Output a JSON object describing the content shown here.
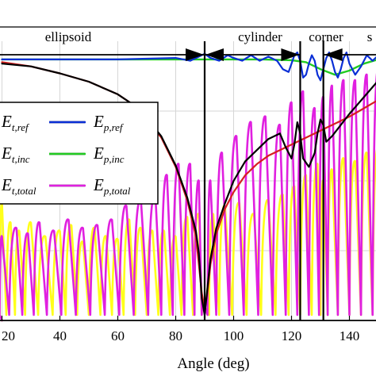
{
  "chart_data": {
    "type": "line",
    "xlabel": "Angle (deg)",
    "x_ticks": [
      20,
      40,
      60,
      80,
      100,
      120,
      140
    ],
    "xlim": [
      20,
      150
    ],
    "ylim": [
      0,
      1
    ],
    "grid": true,
    "legend_position": "left-middle",
    "regions": [
      {
        "label": "ellipsoid",
        "start": 20,
        "end": 90
      },
      {
        "label": "cylinder",
        "start": 90,
        "end": 123
      },
      {
        "label": "corner",
        "start": 123,
        "end": 131
      },
      {
        "label": "s",
        "start": 131,
        "end": 150
      }
    ],
    "region_boundaries": [
      90,
      123,
      131
    ],
    "legend": [
      {
        "main": "E",
        "sub": "t,ref",
        "color": "#1f1f1f"
      },
      {
        "main": "E",
        "sub": "p,ref",
        "color": "#0a2fd6"
      },
      {
        "main": "E",
        "sub": "t,inc",
        "color": "#1f1f1f"
      },
      {
        "main": "E",
        "sub": "p,inc",
        "color": "#22cc22"
      },
      {
        "main": "E",
        "sub": "t,total",
        "color": "#1f1f1f"
      },
      {
        "main": "E",
        "sub": "p,total",
        "color": "#e020e0"
      }
    ],
    "series": [
      {
        "id": "t_ref",
        "color": "#000000",
        "width": 2.2,
        "x": [
          20,
          30,
          40,
          50,
          60,
          65,
          70,
          75,
          80,
          84,
          87,
          88,
          89,
          90,
          91,
          92,
          94,
          97,
          100,
          104,
          108,
          112,
          116,
          118,
          120,
          121,
          122,
          123,
          124,
          126,
          128,
          129,
          130,
          131,
          132,
          134,
          137,
          140,
          145,
          150
        ],
        "y": [
          0.92,
          0.91,
          0.885,
          0.855,
          0.81,
          0.775,
          0.725,
          0.66,
          0.555,
          0.44,
          0.32,
          0.24,
          0.08,
          0.02,
          0.12,
          0.22,
          0.33,
          0.42,
          0.5,
          0.57,
          0.61,
          0.65,
          0.67,
          0.62,
          0.58,
          0.63,
          0.71,
          0.67,
          0.58,
          0.55,
          0.6,
          0.67,
          0.72,
          0.7,
          0.64,
          0.66,
          0.7,
          0.74,
          0.8,
          0.86
        ]
      },
      {
        "id": "t_inc",
        "color": "#d62020",
        "width": 2.2,
        "x": [
          20,
          30,
          40,
          50,
          60,
          65,
          70,
          75,
          80,
          84,
          87,
          88,
          89,
          90,
          91,
          92,
          94,
          97,
          100,
          104,
          108,
          112,
          116,
          120,
          124,
          128,
          132,
          136,
          140,
          145,
          150
        ],
        "y": [
          0.925,
          0.91,
          0.885,
          0.855,
          0.81,
          0.775,
          0.72,
          0.655,
          0.55,
          0.43,
          0.3,
          0.2,
          0.1,
          0.04,
          0.1,
          0.2,
          0.31,
          0.4,
          0.46,
          0.52,
          0.56,
          0.59,
          0.61,
          0.63,
          0.65,
          0.67,
          0.69,
          0.71,
          0.73,
          0.76,
          0.79
        ]
      },
      {
        "id": "p_inc",
        "color": "#22cc22",
        "width": 2.4,
        "x": [
          20,
          40,
          60,
          80,
          100,
          110,
          120,
          125,
          130,
          135,
          140,
          145,
          150
        ],
        "y": [
          0.935,
          0.935,
          0.935,
          0.935,
          0.935,
          0.935,
          0.932,
          0.925,
          0.9,
          0.88,
          0.895,
          0.92,
          0.935
        ]
      },
      {
        "id": "p_ref",
        "color": "#0a2fd6",
        "width": 2.2,
        "x": [
          20,
          40,
          60,
          80,
          85,
          88,
          90,
          92,
          95,
          98,
          100,
          103,
          106,
          109,
          112,
          115,
          117,
          119,
          120,
          121,
          122,
          123,
          124,
          125,
          126,
          127,
          128,
          129,
          130,
          131,
          132,
          133,
          134,
          135,
          136,
          137,
          138,
          139,
          140,
          142,
          144,
          146,
          148,
          150
        ],
        "y": [
          0.935,
          0.935,
          0.935,
          0.94,
          0.93,
          0.945,
          0.955,
          0.94,
          0.93,
          0.95,
          0.94,
          0.93,
          0.95,
          0.93,
          0.945,
          0.93,
          0.9,
          0.89,
          0.92,
          0.95,
          0.96,
          0.93,
          0.87,
          0.88,
          0.92,
          0.95,
          0.93,
          0.88,
          0.86,
          0.9,
          0.94,
          0.96,
          0.93,
          0.89,
          0.87,
          0.9,
          0.94,
          0.96,
          0.92,
          0.88,
          0.91,
          0.95,
          0.93,
          0.95
        ]
      },
      {
        "id": "t_total",
        "color": "#ffff1a",
        "width": 2.6,
        "arches": true,
        "x": [
          20,
          23,
          26,
          30,
          35,
          40,
          44,
          48,
          52,
          56,
          60,
          64,
          68,
          72,
          76,
          80,
          84,
          88,
          90,
          93,
          97,
          102,
          107,
          112,
          117,
          121,
          125,
          129,
          131,
          134,
          138,
          142,
          146,
          150
        ],
        "y": [
          0.42,
          0.35,
          0.32,
          0.35,
          0.3,
          0.32,
          0.34,
          0.28,
          0.33,
          0.3,
          0.29,
          0.36,
          0.33,
          0.32,
          0.32,
          0.3,
          0.37,
          0.38,
          0.05,
          0.38,
          0.41,
          0.42,
          0.38,
          0.43,
          0.45,
          0.48,
          0.52,
          0.56,
          0.5,
          0.54,
          0.58,
          0.57,
          0.6,
          0.62
        ]
      },
      {
        "id": "p_total",
        "color": "#e020e0",
        "width": 2.6,
        "arches": true,
        "x": [
          20,
          25,
          29,
          33,
          38,
          43,
          48,
          53,
          58,
          63,
          68,
          73,
          77,
          81,
          85,
          88,
          90,
          92,
          96,
          101,
          106,
          111,
          116,
          120,
          124,
          128,
          131,
          134,
          138,
          142,
          146,
          150
        ],
        "y": [
          0.3,
          0.33,
          0.31,
          0.35,
          0.32,
          0.36,
          0.33,
          0.34,
          0.36,
          0.41,
          0.43,
          0.45,
          0.52,
          0.56,
          0.56,
          0.5,
          0.05,
          0.5,
          0.6,
          0.66,
          0.71,
          0.73,
          0.7,
          0.78,
          0.82,
          0.76,
          0.8,
          0.84,
          0.86,
          0.86,
          0.88,
          0.9
        ]
      }
    ]
  }
}
